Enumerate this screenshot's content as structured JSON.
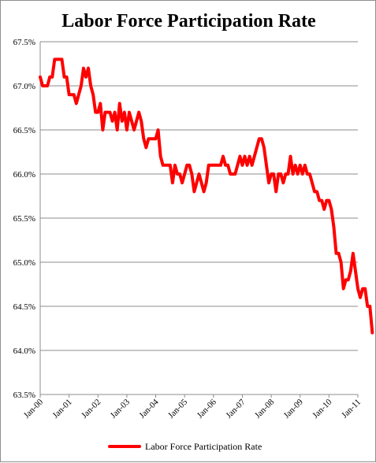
{
  "chart_data": {
    "type": "line",
    "title": "Labor Force Participation Rate",
    "xlabel": "",
    "ylabel": "",
    "ylim": [
      63.5,
      67.5
    ],
    "y_ticks": [
      "63.5%",
      "64.0%",
      "64.5%",
      "65.0%",
      "65.5%",
      "66.0%",
      "66.5%",
      "67.0%",
      "67.5%"
    ],
    "x_ticks": [
      "Jan-00",
      "Jan-01",
      "Jan-02",
      "Jan-03",
      "Jan-04",
      "Jan-05",
      "Jan-06",
      "Jan-07",
      "Jan-08",
      "Jan-09",
      "Jan-10",
      "Jan-11"
    ],
    "grid": true,
    "legend_position": "bottom",
    "series": [
      {
        "name": "Labor Force Participation Rate",
        "color": "#ff0000",
        "values": [
          67.1,
          67.0,
          67.0,
          67.0,
          67.1,
          67.1,
          67.3,
          67.3,
          67.3,
          67.3,
          67.1,
          67.1,
          66.9,
          66.9,
          66.9,
          66.8,
          66.9,
          67.0,
          67.2,
          67.1,
          67.2,
          67.0,
          66.9,
          66.7,
          66.7,
          66.8,
          66.5,
          66.7,
          66.7,
          66.7,
          66.6,
          66.7,
          66.5,
          66.8,
          66.6,
          66.7,
          66.5,
          66.7,
          66.6,
          66.5,
          66.6,
          66.7,
          66.6,
          66.4,
          66.3,
          66.4,
          66.4,
          66.4,
          66.4,
          66.5,
          66.2,
          66.1,
          66.1,
          66.1,
          66.1,
          65.9,
          66.1,
          66.0,
          66.0,
          65.9,
          66.0,
          66.1,
          66.1,
          66.0,
          65.8,
          65.9,
          66.0,
          65.9,
          65.8,
          65.9,
          66.1,
          66.1,
          66.1,
          66.1,
          66.1,
          66.1,
          66.2,
          66.1,
          66.1,
          66.0,
          66.0,
          66.0,
          66.1,
          66.2,
          66.1,
          66.2,
          66.1,
          66.2,
          66.1,
          66.2,
          66.3,
          66.4,
          66.4,
          66.3,
          66.1,
          65.9,
          66.0,
          66.0,
          65.8,
          66.0,
          66.0,
          65.9,
          66.0,
          66.0,
          66.2,
          66.0,
          66.1,
          66.0,
          66.1,
          66.0,
          66.1,
          66.0,
          66.0,
          65.9,
          65.8,
          65.8,
          65.7,
          65.7,
          65.6,
          65.7,
          65.7,
          65.6,
          65.4,
          65.1,
          65.1,
          65.0,
          64.7,
          64.8,
          64.8,
          64.9,
          65.1,
          64.9,
          64.7,
          64.6,
          64.7,
          64.7,
          64.5,
          64.5,
          64.2
        ]
      }
    ]
  }
}
